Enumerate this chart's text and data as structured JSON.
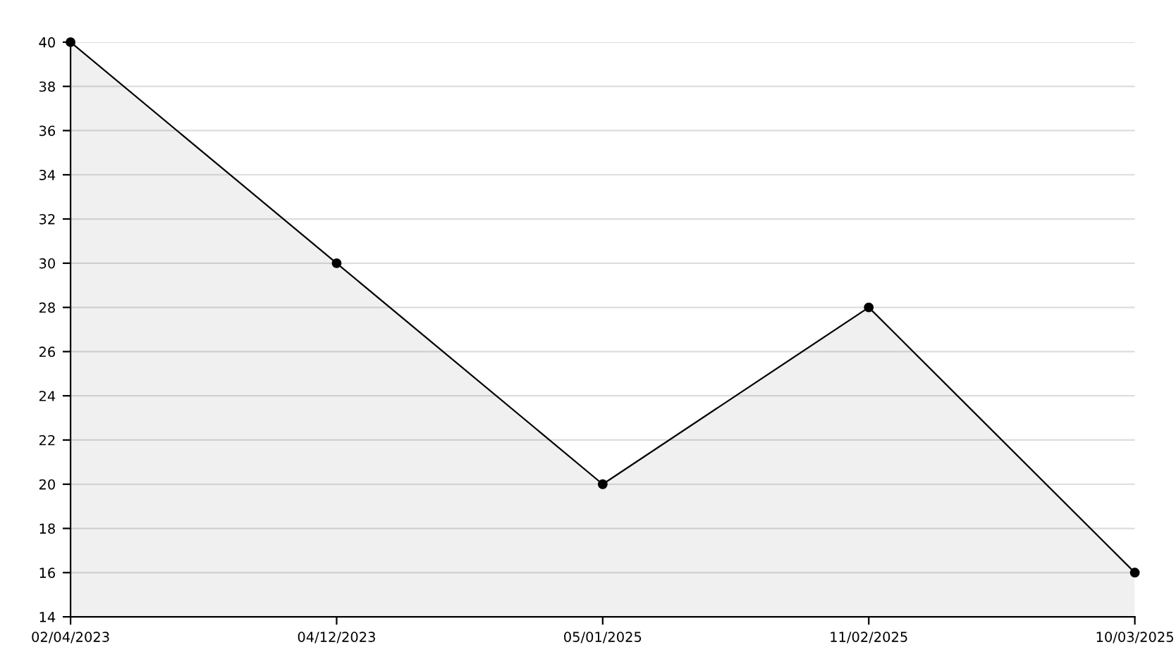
{
  "chart_data": {
    "type": "area",
    "categories": [
      "02/04/2023",
      "04/12/2023",
      "05/01/2025",
      "11/02/2025",
      "10/03/2025"
    ],
    "series": [
      {
        "color": "#000000",
        "values": [
          40,
          30,
          20,
          28,
          16
        ]
      }
    ],
    "ylim": [
      14,
      40
    ],
    "yticks": [
      14,
      16,
      18,
      20,
      22,
      24,
      26,
      28,
      30,
      32,
      34,
      36,
      38,
      40
    ],
    "grid": "y",
    "marker": "circle",
    "line_style": "solid",
    "legend": false
  }
}
